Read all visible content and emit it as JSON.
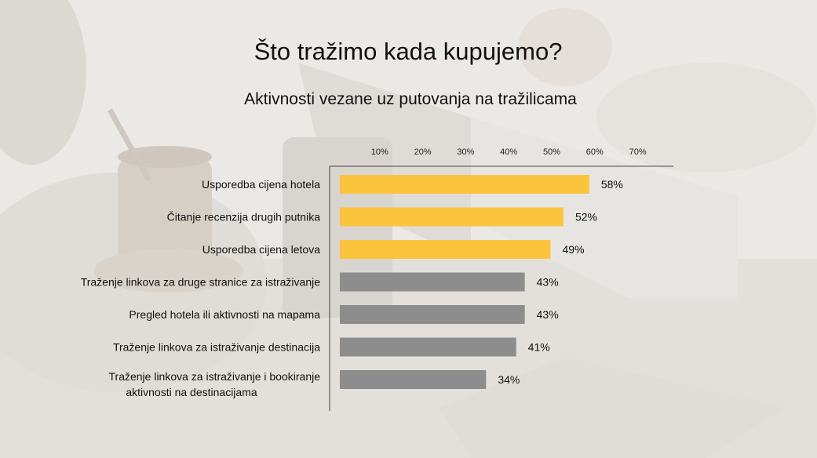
{
  "chart_data": {
    "type": "bar",
    "orientation": "horizontal",
    "title": "Što tražimo kada kupujemo?",
    "subtitle": "Aktivnosti vezane uz putovanja na tražilicama",
    "x_ticks": [
      "10%",
      "20%",
      "30%",
      "40%",
      "50%",
      "60%",
      "70%"
    ],
    "xlim": [
      0,
      70
    ],
    "axis_position": "top",
    "grid": false,
    "categories": [
      [
        "Usporedba cijena hotela"
      ],
      [
        "Čitanje recenzija drugih putnika"
      ],
      [
        "Usporedba cijena letova"
      ],
      [
        "Traženje linkova za druge stranice za istraživanje"
      ],
      [
        "Pregled hotela ili aktivnosti na mapama"
      ],
      [
        "Traženje linkova za istraživanje destinacija"
      ],
      [
        "Traženje linkova za istraživanje i bookiranje",
        "aktivnosti na destinacijama"
      ]
    ],
    "values": [
      58,
      52,
      49,
      43,
      43,
      41,
      34
    ],
    "value_labels": [
      "58%",
      "52%",
      "49%",
      "43%",
      "43%",
      "41%",
      "34%"
    ],
    "colors": [
      "#fcc43c",
      "#fcc43c",
      "#fcc43c",
      "#8d8d8d",
      "#8d8d8d",
      "#8d8d8d",
      "#8d8d8d"
    ],
    "background": "faded photo of people with laptop, phone and coffee"
  }
}
